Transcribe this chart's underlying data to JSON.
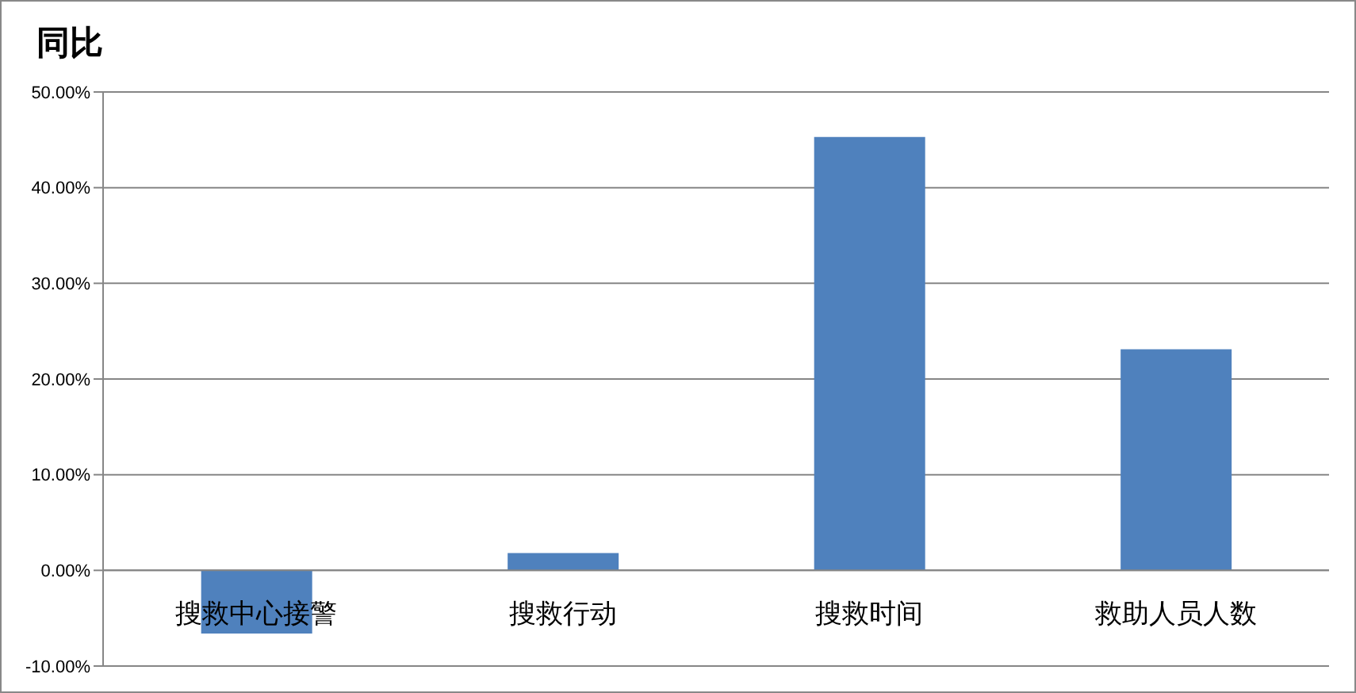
{
  "chart_data": {
    "type": "bar",
    "title": "同比",
    "categories": [
      "搜救中心接警",
      "搜救行动",
      "搜救时间",
      "救助人员人数"
    ],
    "values": [
      -6.6,
      1.8,
      45.3,
      23.1
    ],
    "color": "#4f81bd",
    "ylim": [
      -10,
      50
    ],
    "yticks": [
      {
        "value": -10,
        "label": "-10.00%"
      },
      {
        "value": 0,
        "label": "0.00%"
      },
      {
        "value": 10,
        "label": "10.00%"
      },
      {
        "value": 20,
        "label": "20.00%"
      },
      {
        "value": 30,
        "label": "30.00%"
      },
      {
        "value": 40,
        "label": "40.00%"
      },
      {
        "value": 50,
        "label": "50.00%"
      }
    ],
    "grid": "y",
    "legend": false
  }
}
